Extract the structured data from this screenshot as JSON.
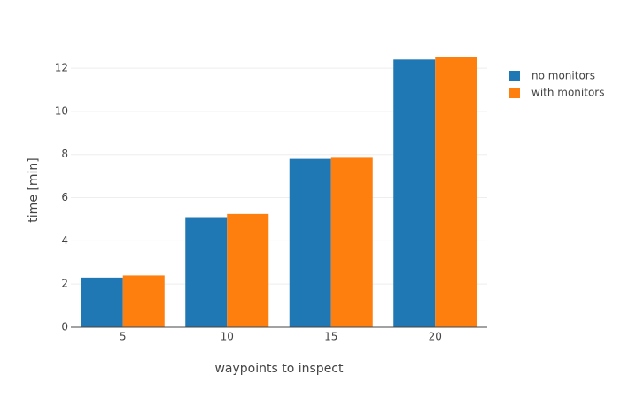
{
  "chart_data": {
    "type": "bar",
    "x_label": "waypoints to inspect",
    "y_label": "time [min]",
    "categories": [
      "5",
      "10",
      "15",
      "20"
    ],
    "series": [
      {
        "name": "no monitors",
        "color": "#1f77b4",
        "values": [
          2.3,
          5.1,
          7.8,
          12.4
        ]
      },
      {
        "name": "with monitors",
        "color": "#ff7f0e",
        "values": [
          2.4,
          5.25,
          7.85,
          12.5
        ]
      }
    ],
    "ylim": [
      0,
      12.7
    ],
    "yticks": [
      0,
      2,
      4,
      6,
      8,
      10,
      12
    ],
    "grid": true,
    "legend": "right"
  }
}
